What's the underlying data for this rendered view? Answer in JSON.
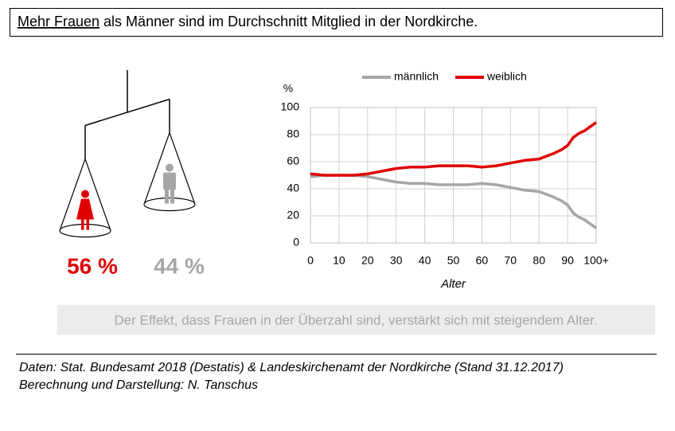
{
  "header": {
    "title_highlight": "Mehr Frauen",
    "title_rest": "als Männer sind im Durchschnitt Mitglied in der Nordkirche."
  },
  "chart_data": [
    {
      "type": "balance",
      "values": [
        56,
        44
      ],
      "value_labels": [
        "56 %",
        "44 %"
      ],
      "colors": [
        "#e00000",
        "#a6a6a6"
      ]
    },
    {
      "type": "line",
      "ylabel": "%",
      "xlabel": "Alter",
      "x": [
        0,
        5,
        10,
        15,
        20,
        25,
        30,
        35,
        40,
        45,
        50,
        55,
        60,
        65,
        70,
        75,
        80,
        85,
        88,
        90,
        92,
        94,
        96,
        98,
        100
      ],
      "series": [
        {
          "name": "männlich",
          "color": "#a6a6a6",
          "values": [
            49,
            50,
            50,
            50,
            49,
            47,
            45,
            44,
            44,
            43,
            43,
            43,
            44,
            43,
            41,
            39,
            38,
            34,
            31,
            28,
            22,
            19,
            17,
            14,
            11
          ]
        },
        {
          "name": "weiblich",
          "color": "#e00000",
          "values": [
            51,
            50,
            50,
            50,
            51,
            53,
            55,
            56,
            56,
            57,
            57,
            57,
            56,
            57,
            59,
            61,
            62,
            66,
            69,
            72,
            78,
            81,
            83,
            86,
            89
          ]
        }
      ],
      "xlim": [
        0,
        100
      ],
      "xticks": [
        0,
        10,
        20,
        30,
        40,
        50,
        60,
        70,
        80,
        90,
        {
          "value": 100,
          "label": "100+"
        }
      ],
      "ylim": [
        0,
        100
      ],
      "yticks": [
        0,
        20,
        40,
        60,
        80,
        100
      ],
      "grid": true,
      "legend": "top"
    }
  ],
  "note": "Der Effekt, dass Frauen in der Überzahl sind, verstärkt sich mit steigendem Alter.",
  "footer": {
    "lines": [
      "Daten: Stat. Bundesamt 2018 (Destatis) & Landeskirchenamt der Nordkirche (Stand 31.12.2017)",
      "Berechnung und Darstellung: N. Tanschus"
    ]
  }
}
